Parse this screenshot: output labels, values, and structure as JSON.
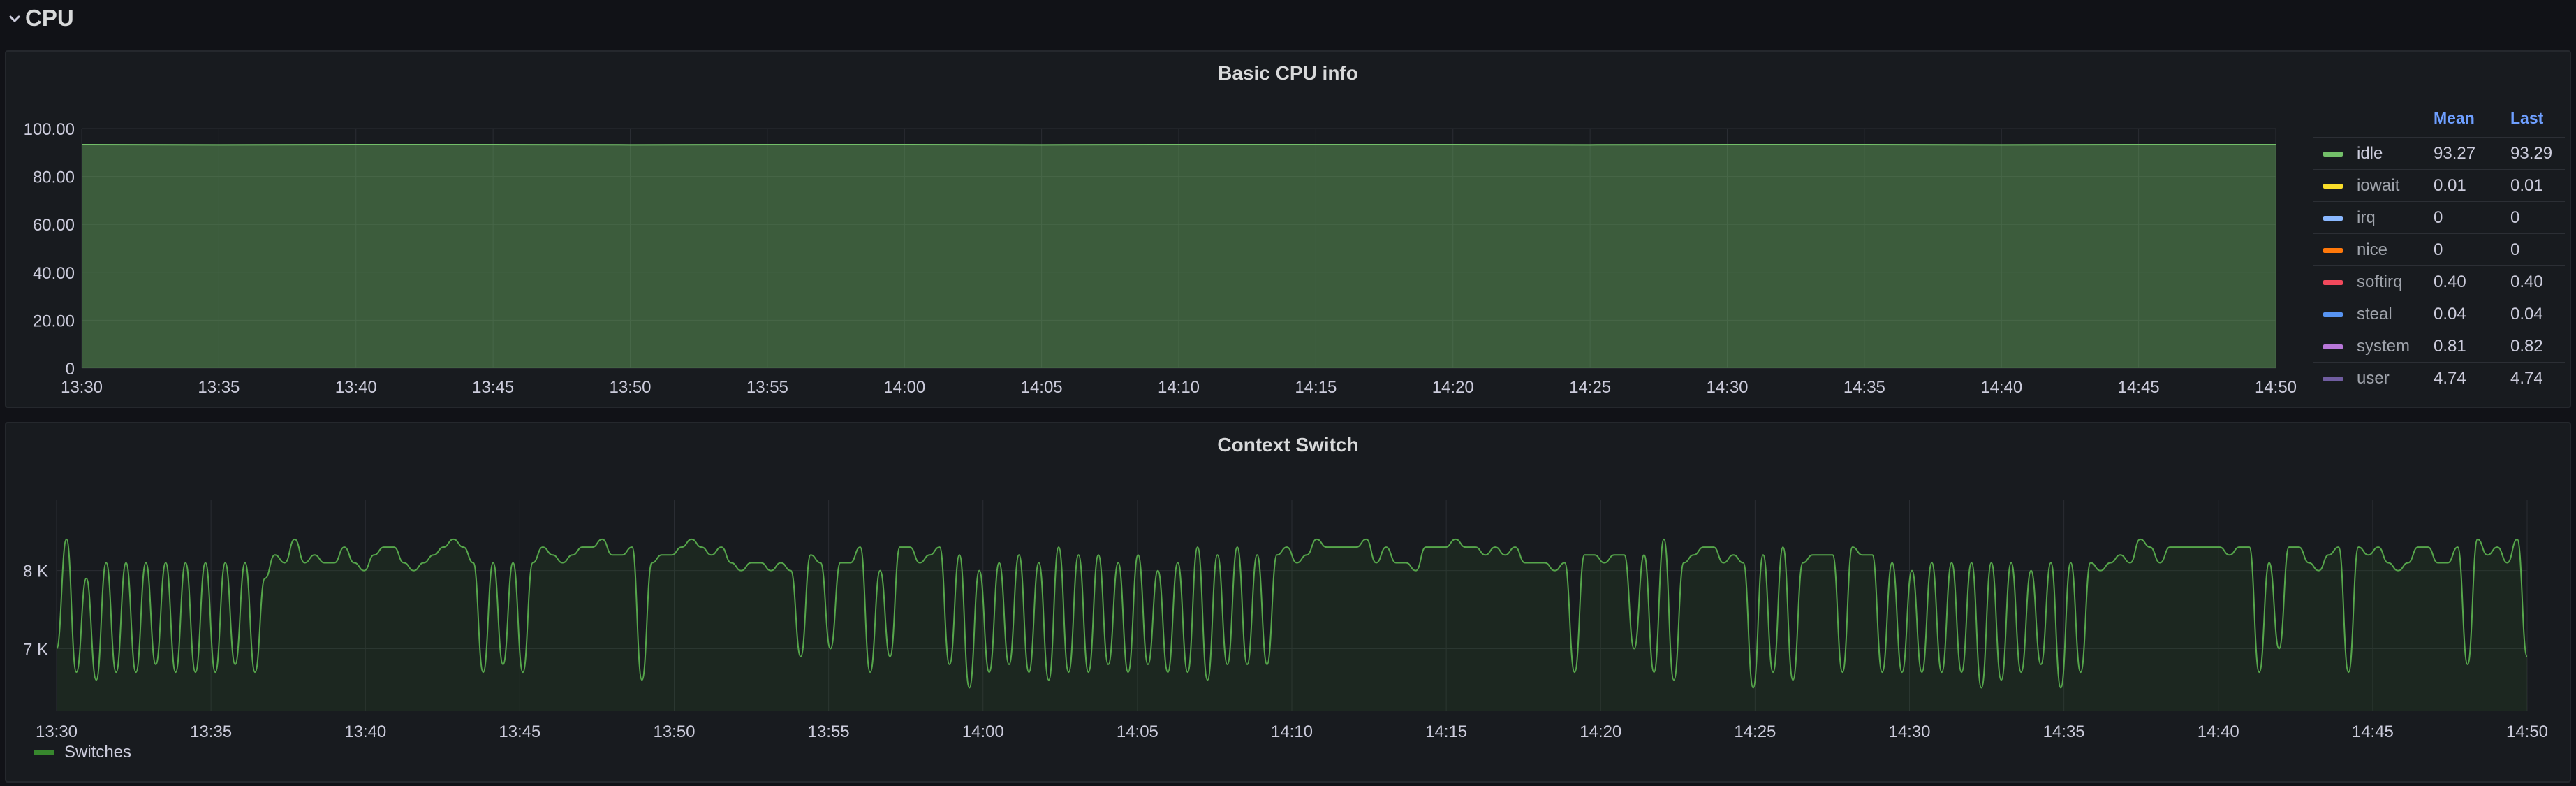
{
  "row": {
    "title": "CPU",
    "chevron_icon": "chevron-down-icon"
  },
  "panels": {
    "cpu": {
      "title": "Basic CPU info",
      "legend_headers": {
        "mean": "Mean",
        "last": "Last"
      },
      "legend": [
        {
          "name": "idle",
          "color": "#73bf69",
          "mean": "93.27",
          "last": "93.29"
        },
        {
          "name": "iowait",
          "color": "#fade2a",
          "mean": "0.01",
          "last": "0.01"
        },
        {
          "name": "irq",
          "color": "#8ab8ff",
          "mean": "0",
          "last": "0"
        },
        {
          "name": "nice",
          "color": "#ff780a",
          "mean": "0",
          "last": "0"
        },
        {
          "name": "softirq",
          "color": "#f2495c",
          "mean": "0.40",
          "last": "0.40"
        },
        {
          "name": "steal",
          "color": "#5794f2",
          "mean": "0.04",
          "last": "0.04"
        },
        {
          "name": "system",
          "color": "#b877d9",
          "mean": "0.81",
          "last": "0.82"
        },
        {
          "name": "user",
          "color": "#705da0",
          "mean": "4.74",
          "last": "4.74"
        }
      ]
    },
    "context_switch": {
      "title": "Context Switch",
      "legend": [
        {
          "name": "Switches",
          "color": "#37872d"
        }
      ]
    }
  },
  "chart_data": [
    {
      "type": "area",
      "title": "Basic CPU info",
      "ylim": [
        0,
        100
      ],
      "y_ticks": [
        "0",
        "20.00",
        "40.00",
        "60.00",
        "80.00",
        "100.00"
      ],
      "x_ticks": [
        "13:30",
        "13:35",
        "13:40",
        "13:45",
        "13:50",
        "13:55",
        "14:00",
        "14:05",
        "14:10",
        "14:15",
        "14:20",
        "14:25",
        "14:30",
        "14:35",
        "14:40",
        "14:45",
        "14:50"
      ],
      "grid": true,
      "legend_position": "right",
      "stacked": true,
      "series": [
        {
          "name": "idle",
          "values": [
            93.3,
            93.2,
            93.3,
            93.3,
            93.2,
            93.3,
            93.3,
            93.2,
            93.3,
            93.3,
            93.3,
            93.2,
            93.3,
            93.3,
            93.2,
            93.3,
            93.3
          ]
        }
      ]
    },
    {
      "type": "line",
      "title": "Context Switch",
      "ylim": [
        6200,
        8900
      ],
      "y_ticks": [
        "7 K",
        "8 K"
      ],
      "x_ticks": [
        "13:30",
        "13:35",
        "13:40",
        "13:45",
        "13:50",
        "13:55",
        "14:00",
        "14:05",
        "14:10",
        "14:15",
        "14:20",
        "14:25",
        "14:30",
        "14:35",
        "14:40",
        "14:45",
        "14:50"
      ],
      "grid": true,
      "legend_position": "bottom",
      "series": [
        {
          "name": "Switches",
          "values": [
            7000,
            8400,
            6700,
            7900,
            6600,
            8100,
            6700,
            8100,
            6700,
            8100,
            6800,
            8100,
            6700,
            8100,
            6700,
            8100,
            6700,
            8100,
            6800,
            8100,
            6700,
            7900,
            8200,
            8100,
            8400,
            8100,
            8200,
            8100,
            8100,
            8300,
            8100,
            8000,
            8200,
            8300,
            8300,
            8100,
            8000,
            8100,
            8200,
            8300,
            8400,
            8300,
            8100,
            6700,
            8100,
            6800,
            8100,
            6700,
            8100,
            8300,
            8200,
            8100,
            8200,
            8300,
            8300,
            8400,
            8200,
            8200,
            8300,
            6600,
            8100,
            8200,
            8200,
            8300,
            8400,
            8300,
            8200,
            8300,
            8100,
            8000,
            8100,
            8100,
            8000,
            8100,
            8000,
            6900,
            8200,
            8100,
            7000,
            8100,
            8100,
            8300,
            6700,
            8000,
            6900,
            8300,
            8300,
            8100,
            8200,
            8300,
            6800,
            8200,
            6500,
            8000,
            6700,
            8100,
            6800,
            8200,
            6700,
            8100,
            6600,
            8300,
            6700,
            8200,
            6700,
            8200,
            6800,
            8100,
            6700,
            8200,
            6800,
            8000,
            6700,
            8100,
            6700,
            8300,
            6600,
            8200,
            6800,
            8300,
            6800,
            8200,
            6800,
            8200,
            8300,
            8100,
            8200,
            8400,
            8300,
            8300,
            8300,
            8300,
            8400,
            8100,
            8300,
            8100,
            8100,
            8000,
            8300,
            8300,
            8300,
            8400,
            8300,
            8300,
            8200,
            8300,
            8200,
            8300,
            8100,
            8100,
            8100,
            8000,
            8100,
            6700,
            8200,
            8200,
            8100,
            8200,
            8200,
            7000,
            8200,
            6700,
            8400,
            6600,
            8100,
            8200,
            8300,
            8300,
            8100,
            8200,
            8100,
            6500,
            8200,
            6700,
            8300,
            6600,
            8100,
            8200,
            8200,
            8200,
            6700,
            8300,
            8200,
            8200,
            6700,
            8100,
            6700,
            8000,
            6700,
            8100,
            6700,
            8100,
            6700,
            8100,
            6500,
            8100,
            6600,
            8100,
            6700,
            8000,
            6800,
            8100,
            6500,
            8100,
            6700,
            8100,
            8000,
            8100,
            8200,
            8100,
            8400,
            8300,
            8100,
            8300,
            8300,
            8300,
            8300,
            8300,
            8300,
            8200,
            8300,
            8300,
            6700,
            8100,
            7000,
            8300,
            8300,
            8100,
            8000,
            8200,
            8300,
            6700,
            8300,
            8200,
            8300,
            8100,
            8000,
            8100,
            8300,
            8300,
            8100,
            8100,
            8300,
            6800,
            8400,
            8200,
            8300,
            8100,
            8400,
            6900
          ]
        }
      ]
    }
  ]
}
